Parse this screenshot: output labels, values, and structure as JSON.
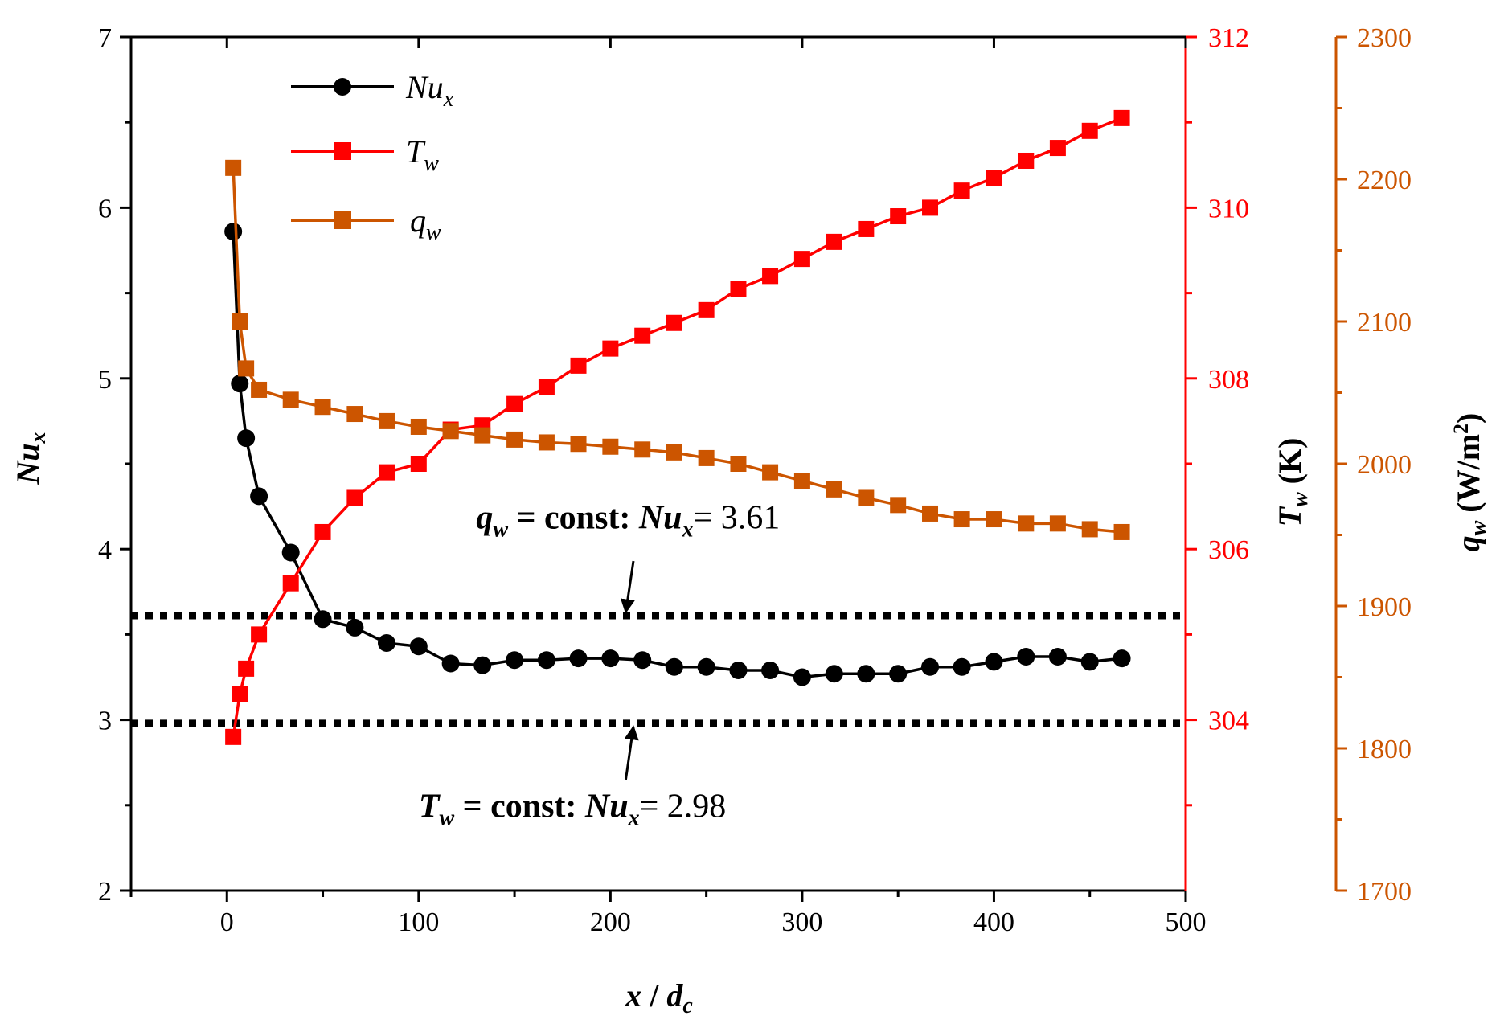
{
  "chart_data": {
    "type": "line",
    "title": "",
    "x": [
      3.3,
      6.7,
      10,
      16.7,
      33.3,
      50,
      66.7,
      83.3,
      100,
      116.7,
      133.3,
      150,
      166.7,
      183.3,
      200,
      216.7,
      233.3,
      250,
      266.7,
      283.3,
      300,
      316.7,
      333.3,
      350,
      366.7,
      383.3,
      400,
      416.7,
      433.3,
      450,
      466.7
    ],
    "xlabel": {
      "main": "x",
      "sep": " / ",
      "var": "d",
      "sub": "c"
    },
    "xlim": [
      -50,
      500
    ],
    "xticks": [
      "0",
      "100",
      "200",
      "300",
      "400",
      "500"
    ],
    "axes": {
      "left": {
        "label": {
          "main": "Nu",
          "sub": "x"
        },
        "ylim": [
          2,
          7
        ],
        "ticks": [
          "2",
          "3",
          "4",
          "5",
          "6",
          "7"
        ],
        "color": "#000000"
      },
      "right1": {
        "label": {
          "main": "T",
          "sub": "w",
          "unit": " (K)"
        },
        "ylim": [
          302,
          312
        ],
        "ticks": [
          "304",
          "306",
          "308",
          "310",
          "312"
        ],
        "color": "#ff0000"
      },
      "right2": {
        "label": {
          "main": "q",
          "sub": "w",
          "unit": " (W/m",
          "sup": "2",
          "close": ")"
        },
        "ylim": [
          1700,
          2300
        ],
        "ticks": [
          "1700",
          "1800",
          "1900",
          "2000",
          "2100",
          "2200",
          "2300"
        ],
        "color": "#cc5500"
      }
    },
    "series": [
      {
        "name": "Nu",
        "sub": "x",
        "axis": "left",
        "marker": "circle",
        "color": "#000000",
        "values": [
          5.86,
          4.97,
          4.65,
          4.31,
          3.98,
          3.59,
          3.54,
          3.45,
          3.43,
          3.33,
          3.32,
          3.35,
          3.35,
          3.36,
          3.36,
          3.35,
          3.31,
          3.31,
          3.29,
          3.29,
          3.25,
          3.27,
          3.27,
          3.27,
          3.31,
          3.31,
          3.34,
          3.37,
          3.37,
          3.34,
          3.36
        ]
      },
      {
        "name": "T",
        "sub": "w",
        "axis": "right1",
        "marker": "square",
        "color": "#ff0000",
        "values": [
          303.8,
          304.3,
          304.6,
          305.0,
          305.6,
          306.2,
          306.6,
          306.9,
          307.0,
          307.4,
          307.45,
          307.7,
          307.9,
          308.15,
          308.35,
          308.5,
          308.65,
          308.8,
          309.05,
          309.2,
          309.4,
          309.6,
          309.75,
          309.9,
          310.0,
          310.2,
          310.35,
          310.55,
          310.7,
          310.9,
          311.05
        ]
      },
      {
        "name": "q",
        "sub": "w",
        "axis": "right2",
        "marker": "square",
        "color": "#cc5500",
        "values": [
          2208,
          2100,
          2067,
          2052,
          2045,
          2040,
          2035,
          2030,
          2026,
          2023,
          2020,
          2017,
          2015,
          2014,
          2012,
          2010,
          2008,
          2004,
          2000,
          1994,
          1988,
          1982,
          1976,
          1971,
          1965,
          1961,
          1961,
          1958,
          1958,
          1954,
          1952
        ]
      }
    ],
    "reference_lines": [
      {
        "axis": "left",
        "y": 3.61,
        "style": "dotted"
      },
      {
        "axis": "left",
        "y": 2.98,
        "style": "dotted"
      }
    ],
    "annotations": [
      {
        "var": "q",
        "sub": "w",
        "mid": " = const: ",
        "nu": "Nu",
        "nusub": "x",
        "eq": "= 3.61",
        "text_at": [
          130,
          4.12
        ],
        "arrow_from": [
          212,
          3.93
        ],
        "arrow_to": [
          208,
          3.63
        ]
      },
      {
        "var": "T",
        "sub": "w",
        "mid": " = const: ",
        "nu": "Nu",
        "nusub": "x",
        "eq": "= 2.98",
        "text_at": [
          100,
          2.43
        ],
        "arrow_from": [
          208,
          2.65
        ],
        "arrow_to": [
          212,
          2.96
        ]
      }
    ],
    "legend": {
      "position": "top-left"
    }
  }
}
